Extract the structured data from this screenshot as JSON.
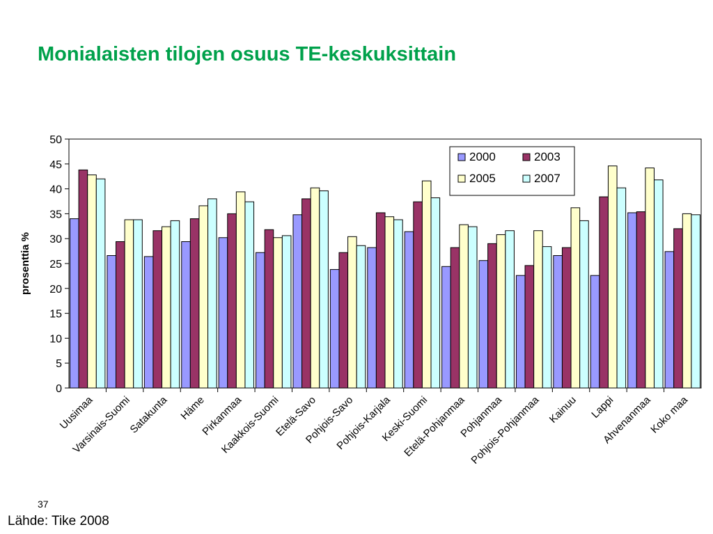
{
  "slide": {
    "title": "Monialaisten tilojen osuus TE-keskuksittain",
    "page_number": "37",
    "source": "Lähde: Tike 2008"
  },
  "colors": {
    "title": "#00a14b",
    "series": [
      "#9999ff",
      "#993366",
      "#ffffcc",
      "#ccffff"
    ]
  },
  "chart_data": {
    "type": "bar",
    "title": "",
    "xlabel": "",
    "ylabel": "prosenttia %",
    "ylim": [
      0,
      50
    ],
    "yticks": [
      0,
      5,
      10,
      15,
      20,
      25,
      30,
      35,
      40,
      45,
      50
    ],
    "grid": false,
    "legend_position": "top-right",
    "categories": [
      "Uusimaa",
      "Varsinais-Suomi",
      "Satakunta",
      "Häme",
      "Pirkanmaa",
      "Kaakkois-Suomi",
      "Etelä-Savo",
      "Pohjois-Savo",
      "Pohjois-Karjala",
      "Keski-Suomi",
      "Etelä-Pohjanmaa",
      "Pohjanmaa",
      "Pohjois-Pohjanmaa",
      "Kainuu",
      "Lappi",
      "Ahvenanmaa",
      "Koko maa"
    ],
    "series": [
      {
        "name": "2000",
        "values": [
          34.0,
          26.6,
          26.4,
          29.4,
          30.2,
          27.2,
          34.8,
          23.8,
          28.2,
          31.4,
          24.4,
          25.6,
          22.6,
          26.6,
          22.6,
          35.2,
          27.4
        ]
      },
      {
        "name": "2003",
        "values": [
          43.8,
          29.4,
          31.6,
          34.0,
          35.0,
          31.8,
          38.0,
          27.2,
          35.2,
          37.4,
          28.2,
          29.0,
          24.6,
          28.2,
          38.4,
          35.4,
          32.0
        ]
      },
      {
        "name": "2005",
        "values": [
          42.8,
          33.8,
          32.4,
          36.6,
          39.4,
          30.2,
          40.2,
          30.4,
          34.4,
          41.6,
          32.8,
          30.8,
          31.6,
          36.2,
          44.6,
          44.2,
          35.0
        ]
      },
      {
        "name": "2007",
        "values": [
          42.0,
          33.8,
          33.6,
          38.0,
          37.4,
          30.6,
          39.6,
          28.6,
          33.8,
          38.2,
          32.4,
          31.6,
          28.4,
          33.6,
          40.2,
          41.8,
          34.8
        ]
      }
    ]
  }
}
